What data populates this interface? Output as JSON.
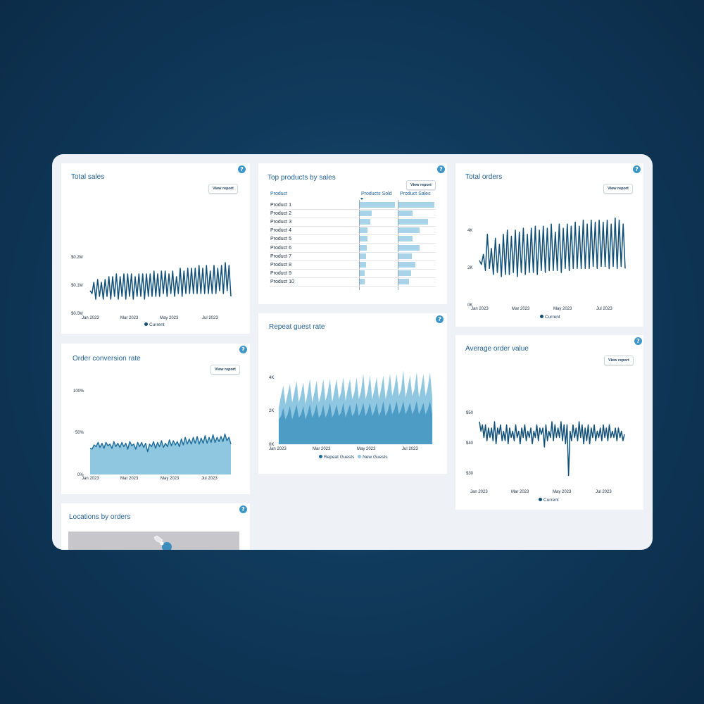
{
  "colors": {
    "line": "#0f4f78",
    "area": "#8fc6e0",
    "bar": "#a8d3e9",
    "accent": "#3d96c8"
  },
  "common": {
    "view_report": "View report",
    "help_icon_label": "?"
  },
  "total_sales": {
    "title": "Total sales",
    "yticks": [
      "$0.2M",
      "$0.1M",
      "$0.0M"
    ],
    "xticks": [
      "Jan 2023",
      "Mar 2023",
      "May 2023",
      "Jul 2023"
    ],
    "legend": "Current"
  },
  "conversion": {
    "title": "Order conversion rate",
    "yticks": [
      "100%",
      "50%",
      "0%"
    ],
    "xticks": [
      "Jan 2023",
      "Mar 2023",
      "May 2023",
      "Jul 2023"
    ]
  },
  "locations": {
    "title": "Locations by orders"
  },
  "top_products": {
    "title": "Top products by sales",
    "headers": {
      "product": "Product",
      "sold": "Products Sold",
      "sales": "Product Sales"
    },
    "sort_icon": "sort-desc-icon"
  },
  "repeat": {
    "title": "Repeat guest rate",
    "yticks": [
      "4K",
      "2K",
      "0K"
    ],
    "xticks": [
      "Jan 2023",
      "Mar 2023",
      "May 2023",
      "Jul 2023"
    ],
    "legend": [
      "Repeat Guests",
      "New Guests"
    ]
  },
  "total_orders": {
    "title": "Total orders",
    "yticks": [
      "4K",
      "2K",
      "0K"
    ],
    "xticks": [
      "Jan 2023",
      "Mar 2023",
      "May 2023",
      "Jul 2023"
    ],
    "legend": "Current"
  },
  "aov": {
    "title": "Average order value",
    "yticks": [
      "$50",
      "$40",
      "$30"
    ],
    "xticks": [
      "Jan 2023",
      "Mar 2023",
      "May 2023",
      "Jul 2023"
    ],
    "legend": "Current"
  },
  "chart_data": [
    {
      "id": "total_sales",
      "type": "line",
      "title": "Total sales",
      "x_range": [
        "2023-01-01",
        "2023-08-01"
      ],
      "ylim": [
        0,
        0.2
      ],
      "y_unit": "$M",
      "series": [
        {
          "name": "Current",
          "values": [
            0.08,
            0.07,
            0.11,
            0.05,
            0.12,
            0.06,
            0.11,
            0.05,
            0.12,
            0.06,
            0.13,
            0.05,
            0.13,
            0.06,
            0.14,
            0.05,
            0.13,
            0.06,
            0.14,
            0.05,
            0.14,
            0.06,
            0.14,
            0.05,
            0.13,
            0.06,
            0.14,
            0.06,
            0.14,
            0.05,
            0.14,
            0.06,
            0.14,
            0.06,
            0.15,
            0.06,
            0.14,
            0.06,
            0.15,
            0.07,
            0.15,
            0.06,
            0.14,
            0.07,
            0.15,
            0.06,
            0.13,
            0.07,
            0.16,
            0.06,
            0.15,
            0.07,
            0.16,
            0.07,
            0.16,
            0.07,
            0.16,
            0.07,
            0.17,
            0.07,
            0.16,
            0.07,
            0.17,
            0.07,
            0.15,
            0.07,
            0.17,
            0.07,
            0.16,
            0.08,
            0.17,
            0.07,
            0.18,
            0.08,
            0.17,
            0.06
          ]
        }
      ]
    },
    {
      "id": "conversion",
      "type": "area",
      "title": "Order conversion rate",
      "x_range": [
        "2023-01-01",
        "2023-08-01"
      ],
      "ylim": [
        0,
        100
      ],
      "y_unit": "%",
      "series": [
        {
          "name": "Current",
          "values": [
            31,
            30,
            35,
            33,
            38,
            32,
            37,
            31,
            38,
            34,
            36,
            31,
            39,
            33,
            37,
            32,
            38,
            33,
            37,
            30,
            39,
            34,
            36,
            30,
            38,
            33,
            38,
            32,
            37,
            27,
            36,
            33,
            39,
            31,
            38,
            33,
            40,
            32,
            37,
            33,
            41,
            34,
            40,
            35,
            39,
            33,
            42,
            35,
            44,
            36,
            42,
            36,
            44,
            37,
            45,
            36,
            43,
            37,
            46,
            37,
            44,
            38,
            47,
            38,
            44,
            39,
            45,
            39,
            48,
            40,
            44,
            36
          ]
        }
      ]
    },
    {
      "id": "top_products",
      "type": "bar",
      "title": "Top products by sales",
      "categories": [
        "Product 1",
        "Product 2",
        "Product 3",
        "Product 4",
        "Product 5",
        "Product 6",
        "Product 7",
        "Product 8",
        "Product 9",
        "Product 10"
      ],
      "series": [
        {
          "name": "Products Sold",
          "values": [
            100,
            34,
            30,
            22,
            22,
            20,
            18,
            17,
            14,
            13
          ]
        },
        {
          "name": "Product Sales",
          "values": [
            100,
            40,
            82,
            58,
            40,
            58,
            38,
            48,
            35,
            30
          ]
        }
      ]
    },
    {
      "id": "repeat",
      "type": "area",
      "title": "Repeat guest rate",
      "x_range": [
        "2023-01-01",
        "2023-08-01"
      ],
      "ylim": [
        0,
        4500
      ],
      "y_unit": "K",
      "series": [
        {
          "name": "Repeat Guests",
          "values": [
            1500,
            1700,
            2200,
            1500,
            1800,
            2300,
            1500,
            1900,
            2400,
            1600,
            1800,
            2300,
            1500,
            1900,
            2400,
            1600,
            1900,
            2400,
            1600,
            1800,
            2400,
            1600,
            1900,
            2500,
            1600,
            1900,
            2400,
            1700,
            1900,
            2500,
            1600,
            2000,
            2400,
            1700,
            1900,
            2500,
            1700,
            2000,
            2500,
            1700,
            2000,
            2500,
            1700,
            2000,
            2500,
            1700,
            2000,
            2600,
            1700,
            2000,
            2500,
            1800,
            2100,
            2600,
            1800,
            2100,
            2600,
            1800,
            2100,
            2500,
            1800,
            2100,
            2600,
            1800,
            2100,
            2500,
            1800,
            2100,
            2600,
            1800
          ]
        },
        {
          "name": "New Guests",
          "values": [
            2200,
            2900,
            3500,
            2400,
            3000,
            3600,
            2500,
            3100,
            3800,
            2500,
            3000,
            3700,
            2400,
            3100,
            3900,
            2500,
            3100,
            3800,
            2500,
            3000,
            3900,
            2600,
            3100,
            3900,
            2500,
            3200,
            3900,
            2700,
            3100,
            4000,
            2600,
            3300,
            3900,
            2700,
            3100,
            4000,
            2700,
            3200,
            4200,
            2700,
            3200,
            4100,
            2700,
            3300,
            4000,
            2700,
            3300,
            4100,
            2700,
            3300,
            4200,
            2900,
            3400,
            4200,
            2900,
            3300,
            4400,
            2800,
            3400,
            4100,
            2900,
            3300,
            4300,
            2800,
            3400,
            4200,
            2900,
            3400,
            4300,
            2800
          ]
        }
      ]
    },
    {
      "id": "total_orders",
      "type": "line",
      "title": "Total orders",
      "x_range": [
        "2023-01-01",
        "2023-08-01"
      ],
      "ylim": [
        0,
        4500
      ],
      "y_unit": "K",
      "series": [
        {
          "name": "Current",
          "values": [
            2200,
            2000,
            2500,
            1700,
            3500,
            1800,
            2800,
            1500,
            3300,
            1600,
            3000,
            1400,
            3500,
            1500,
            3700,
            1500,
            3400,
            1600,
            3700,
            1400,
            3600,
            1600,
            3800,
            1500,
            3500,
            1600,
            3800,
            1600,
            3900,
            1500,
            3700,
            1700,
            3900,
            1600,
            3800,
            1700,
            4000,
            1700,
            3600,
            1700,
            4000,
            1600,
            3800,
            1800,
            4000,
            1700,
            3900,
            1800,
            4100,
            1800,
            3900,
            1800,
            4200,
            1800,
            4000,
            1800,
            4200,
            1900,
            4100,
            1800,
            4200,
            1900,
            4100,
            1900,
            4200,
            1800,
            4000,
            1900,
            4300,
            1800,
            4200,
            1900,
            4000,
            1800
          ]
        }
      ]
    },
    {
      "id": "aov",
      "type": "line",
      "title": "Average order value",
      "x_range": [
        "2023-01-01",
        "2023-08-01"
      ],
      "ylim": [
        28,
        52
      ],
      "y_unit": "$",
      "series": [
        {
          "name": "Current",
          "values": [
            46,
            43,
            45,
            41,
            45,
            40,
            44,
            41,
            44,
            40,
            46,
            39,
            44,
            42,
            45,
            40,
            43,
            40,
            45,
            39,
            44,
            41,
            43,
            40,
            45,
            41,
            43,
            39,
            44,
            41,
            45,
            40,
            43,
            41,
            44,
            39,
            43,
            41,
            45,
            40,
            44,
            42,
            44,
            38,
            45,
            40,
            43,
            41,
            46,
            40,
            45,
            41,
            44,
            41,
            46,
            40,
            45,
            39,
            45,
            29,
            43,
            40,
            45,
            41,
            44,
            40,
            46,
            41,
            45,
            39,
            44,
            40,
            45,
            39,
            44,
            41,
            45,
            40,
            43,
            41,
            44,
            40,
            45,
            41,
            44,
            40,
            45,
            41,
            43,
            41,
            44,
            40,
            44,
            41,
            43,
            40,
            42
          ]
        }
      ]
    }
  ]
}
